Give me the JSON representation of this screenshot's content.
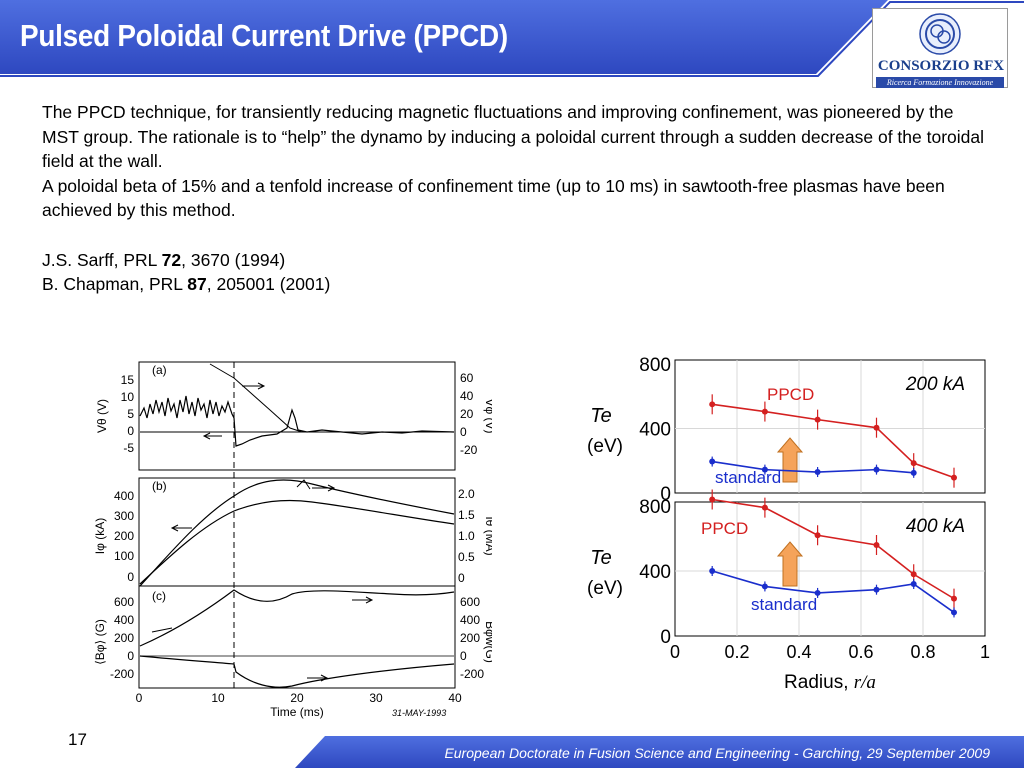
{
  "title": "Pulsed Poloidal Current Drive (PPCD)",
  "logo": {
    "name": "CONSORZIO RFX",
    "tagline": "Ricerca Formazione Innovazione"
  },
  "body": {
    "para1": "The PPCD technique, for transiently reducing magnetic fluctuations and improving confinement, was pioneered by the MST group. The rationale is to “help” the dynamo by inducing a poloidal current through a sudden decrease of the toroidal field at the wall.",
    "para2": "A poloidal beta of 15% and a tenfold increase of confinement time (up to 10 ms) in sawtooth-free plasmas have been achieved by this method.",
    "ref1": {
      "authors": "J.S. Sarff, PRL ",
      "volume": "72",
      "rest": ", 3670 (1994)"
    },
    "ref2": {
      "authors": "B. Chapman, PRL ",
      "volume": "87",
      "rest": ", 205001 (2001)"
    }
  },
  "figure_left": {
    "panel_a": {
      "label": "(a)",
      "left_ticks": [
        "15",
        "10",
        "5",
        "0",
        "-5"
      ],
      "right_ticks": [
        "60",
        "40",
        "20",
        "0",
        "-20"
      ],
      "left_axis": "Vθ (V)",
      "right_axis": "Vφ (V)"
    },
    "panel_b": {
      "label": "(b)",
      "left_ticks": [
        "400",
        "300",
        "200",
        "100",
        "0"
      ],
      "right_ticks": [
        "2.0",
        "1.5",
        "1.0",
        "0.5",
        "0"
      ],
      "left_axis": "Iφ (kA)",
      "right_axis": "Iθ (MA)"
    },
    "panel_c": {
      "label": "(c)",
      "left_ticks": [
        "600",
        "400",
        "200",
        "0",
        "-200"
      ],
      "right_ticks": [
        "600",
        "400",
        "200",
        "0",
        "-200"
      ],
      "left_axis": "⟨Bφ⟩ (G)",
      "right_axis": "Bφw(G)"
    },
    "x_ticks": [
      "0",
      "10",
      "20",
      "30",
      "40"
    ],
    "x_label": "Time (ms)",
    "date_stamp": "31-MAY-1993"
  },
  "figure_right": {
    "y_ticks": [
      "800",
      "400",
      "0"
    ],
    "y_label_symbol": "Te",
    "y_label_unit": "(eV)",
    "x_ticks": [
      "0",
      "0.2",
      "0.4",
      "0.6",
      "0.8",
      "1"
    ],
    "x_label": "Radius, ",
    "x_label_symbol": "r/a",
    "colors": {
      "ppcd": "#d42020",
      "standard": "#1a2ecc",
      "arrow": "#f5a35a"
    },
    "panels": [
      {
        "current_label": "200 kA",
        "series": [
          {
            "name": "PPCD",
            "x": [
              0.12,
              0.29,
              0.46,
              0.65,
              0.77,
              0.9
            ],
            "y": [
              550,
              505,
              455,
              405,
              185,
              95
            ]
          },
          {
            "name": "standard",
            "x": [
              0.12,
              0.29,
              0.46,
              0.65,
              0.77
            ],
            "y": [
              195,
              145,
              130,
              145,
              125
            ]
          }
        ]
      },
      {
        "current_label": "400 kA",
        "series": [
          {
            "name": "PPCD",
            "x": [
              0.12,
              0.29,
              0.46,
              0.65,
              0.77,
              0.9
            ],
            "y": [
              840,
              790,
              620,
              560,
              380,
              230
            ]
          },
          {
            "name": "standard",
            "x": [
              0.12,
              0.29,
              0.46,
              0.65,
              0.77,
              0.9
            ],
            "y": [
              400,
              305,
              265,
              285,
              320,
              145
            ]
          }
        ]
      }
    ]
  },
  "slide_number": "17",
  "footer": "European Doctorate in Fusion Science and Engineering  -  Garching, 29 September 2009"
}
